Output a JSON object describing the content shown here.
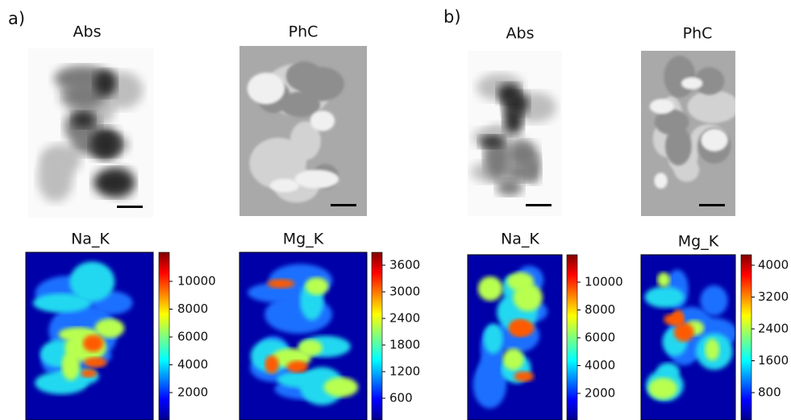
{
  "panels": [
    {
      "label": "a)",
      "images": [
        {
          "title": "Abs"
        },
        {
          "title": "PhC"
        }
      ],
      "maps": [
        {
          "title": "Na_K",
          "colorbar_ticks": [
            10000,
            8000,
            6000,
            4000,
            2000
          ]
        },
        {
          "title": "Mg_K",
          "colorbar_ticks": [
            3600,
            3000,
            2400,
            1800,
            1200,
            600
          ]
        }
      ]
    },
    {
      "label": "b)",
      "images": [
        {
          "title": "Abs"
        },
        {
          "title": "PhC"
        }
      ],
      "maps": [
        {
          "title": "Na_K",
          "colorbar_ticks": [
            10000,
            8000,
            6000,
            4000,
            2000
          ]
        },
        {
          "title": "Mg_K",
          "colorbar_ticks": [
            4000,
            3200,
            2400,
            1600,
            800
          ]
        }
      ]
    }
  ]
}
